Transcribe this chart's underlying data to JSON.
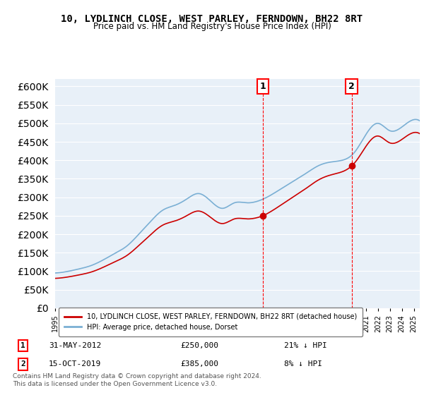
{
  "title": "10, LYDLINCH CLOSE, WEST PARLEY, FERNDOWN, BH22 8RT",
  "subtitle": "Price paid vs. HM Land Registry's House Price Index (HPI)",
  "ylim": [
    0,
    620000
  ],
  "yticks": [
    0,
    50000,
    100000,
    150000,
    200000,
    250000,
    300000,
    350000,
    400000,
    450000,
    500000,
    550000,
    600000
  ],
  "bg_color": "#e8f0f8",
  "plot_bg": "#e8f0f8",
  "hpi_color": "#7aafd4",
  "price_color": "#cc0000",
  "marker1_date_idx": 17.4,
  "marker2_date_idx": 24.8,
  "sale1_label": "1",
  "sale2_label": "2",
  "sale1_price": 250000,
  "sale2_price": 385000,
  "sale1_date": "31-MAY-2012",
  "sale2_date": "15-OCT-2019",
  "sale1_hpi": "21% ↓ HPI",
  "sale2_hpi": "8% ↓ HPI",
  "legend_house": "10, LYDLINCH CLOSE, WEST PARLEY, FERNDOWN, BH22 8RT (detached house)",
  "legend_hpi": "HPI: Average price, detached house, Dorset",
  "footnote": "Contains HM Land Registry data © Crown copyright and database right 2024.\nThis data is licensed under the Open Government Licence v3.0."
}
